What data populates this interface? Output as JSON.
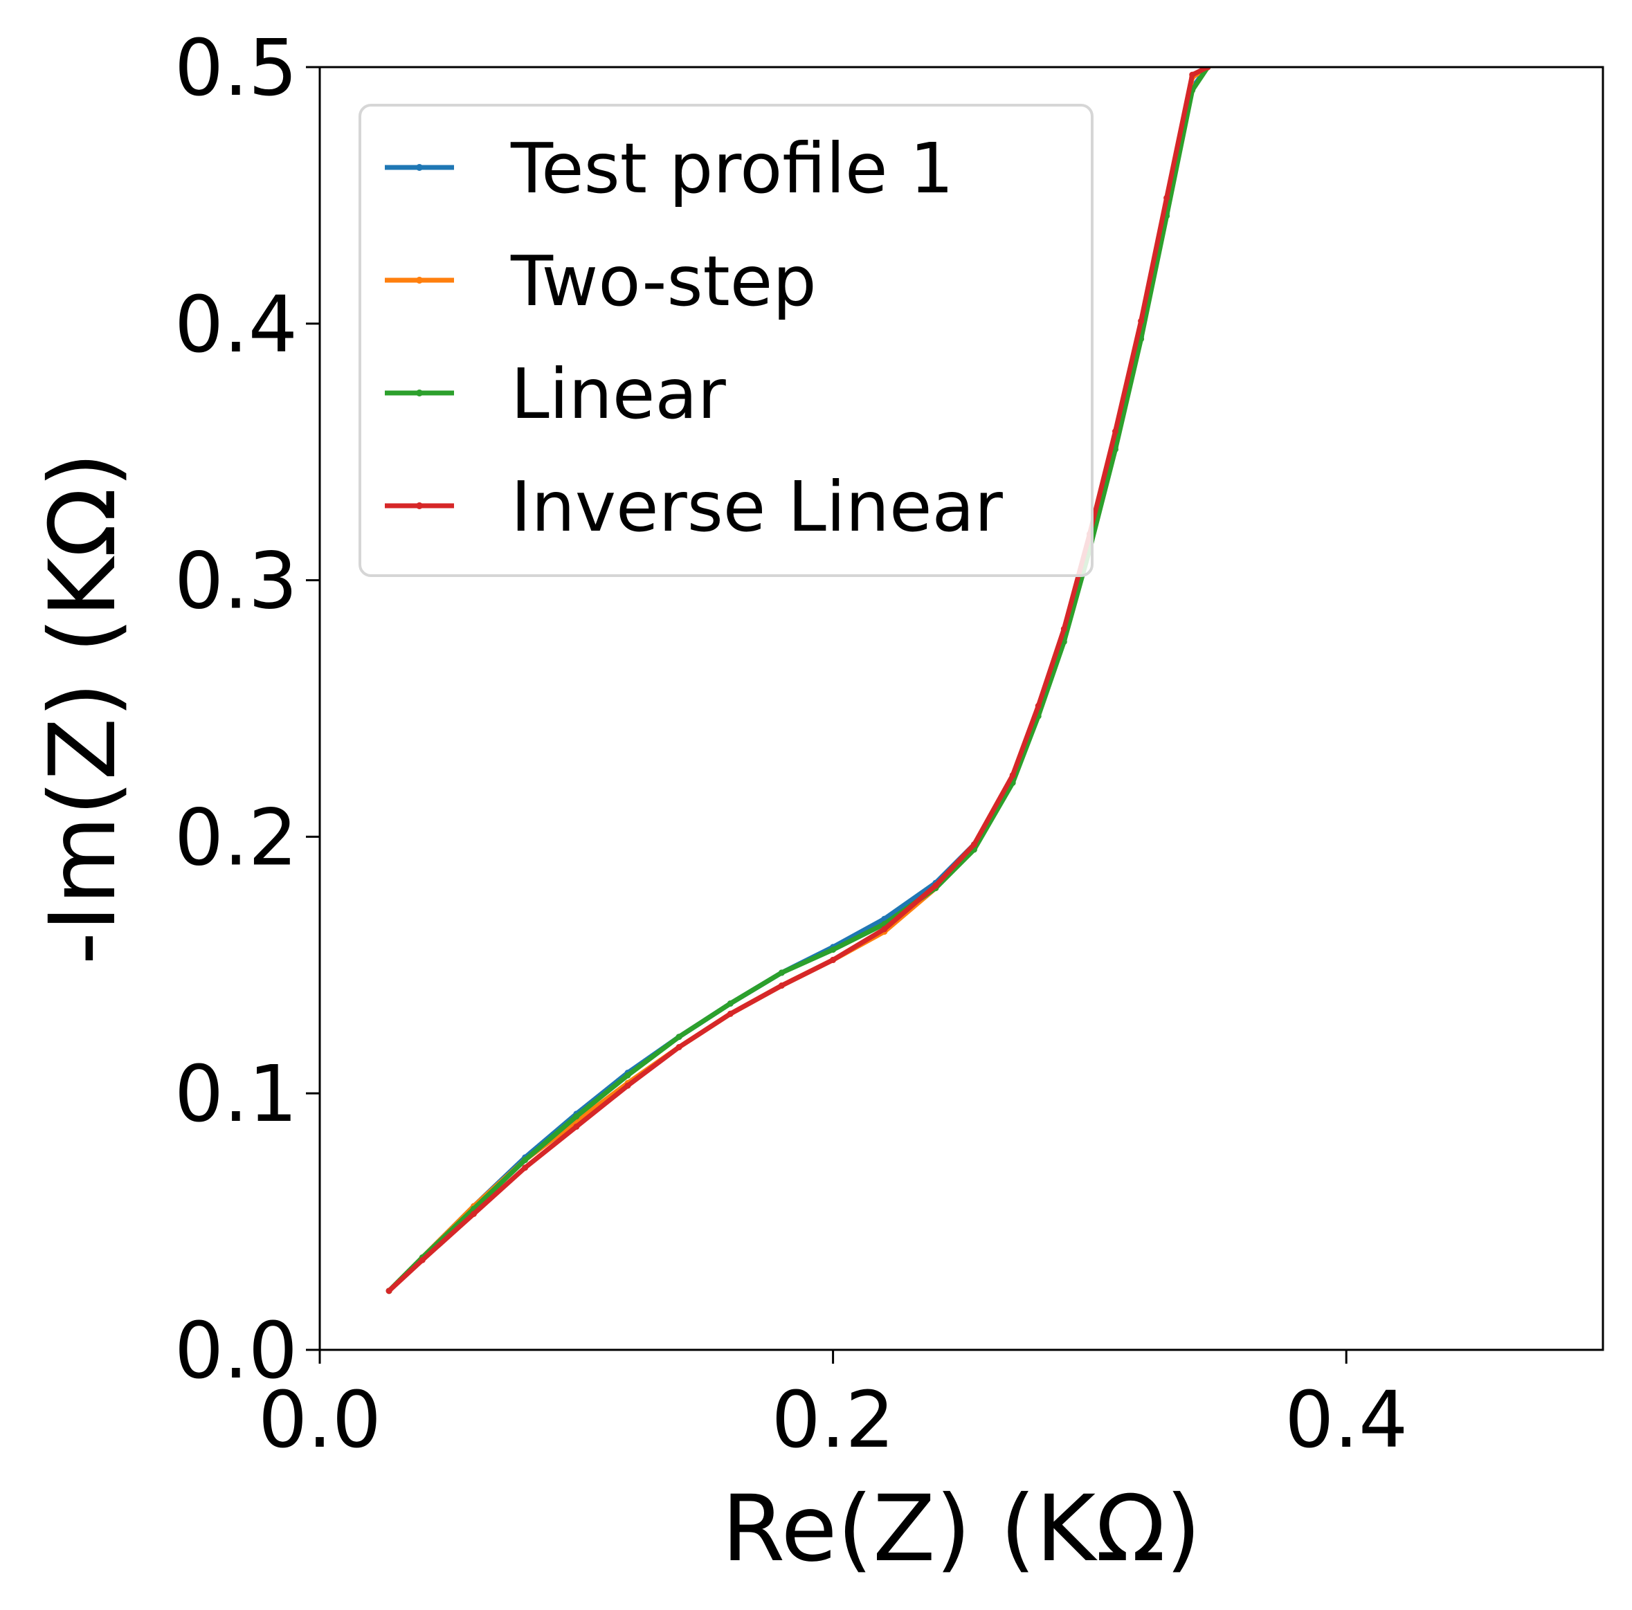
{
  "chart_data": {
    "type": "line",
    "xlabel": "Re(Z) (KΩ)",
    "ylabel": "-Im(Z) (KΩ)",
    "xlim": [
      0.0,
      0.5
    ],
    "ylim": [
      0.0,
      0.5
    ],
    "xticks": [
      0.0,
      0.2,
      0.4
    ],
    "xtick_labels": [
      "0.0",
      "0.2",
      "0.4"
    ],
    "yticks": [
      0.0,
      0.1,
      0.2,
      0.3,
      0.4,
      0.5
    ],
    "ytick_labels": [
      "0.0",
      "0.1",
      "0.2",
      "0.3",
      "0.4",
      "0.5"
    ],
    "grid": false,
    "legend_position": "top-left",
    "series": [
      {
        "name": "Test profile 1",
        "color": "#1f77b4",
        "x": [
          0.027,
          0.04,
          0.06,
          0.08,
          0.1,
          0.12,
          0.14,
          0.16,
          0.18,
          0.2,
          0.22,
          0.24,
          0.255,
          0.27,
          0.28,
          0.29,
          0.3,
          0.31,
          0.32,
          0.33,
          0.34,
          0.346
        ],
        "y": [
          0.023,
          0.036,
          0.056,
          0.075,
          0.092,
          0.108,
          0.122,
          0.135,
          0.147,
          0.157,
          0.168,
          0.182,
          0.197,
          0.222,
          0.248,
          0.277,
          0.313,
          0.352,
          0.395,
          0.443,
          0.492,
          0.5
        ]
      },
      {
        "name": "Two-step",
        "color": "#ff7f0e",
        "x": [
          0.027,
          0.04,
          0.06,
          0.08,
          0.1,
          0.12,
          0.14,
          0.16,
          0.18,
          0.2,
          0.22,
          0.24,
          0.255,
          0.27,
          0.28,
          0.29,
          0.3,
          0.31,
          0.32,
          0.33,
          0.34,
          0.346
        ],
        "y": [
          0.023,
          0.036,
          0.056,
          0.074,
          0.089,
          0.104,
          0.118,
          0.131,
          0.142,
          0.152,
          0.163,
          0.18,
          0.196,
          0.223,
          0.25,
          0.279,
          0.316,
          0.356,
          0.399,
          0.447,
          0.496,
          0.5
        ]
      },
      {
        "name": "Linear",
        "color": "#2ca02c",
        "x": [
          0.027,
          0.04,
          0.06,
          0.08,
          0.1,
          0.12,
          0.14,
          0.16,
          0.18,
          0.2,
          0.22,
          0.24,
          0.255,
          0.27,
          0.28,
          0.29,
          0.3,
          0.31,
          0.32,
          0.33,
          0.34,
          0.346
        ],
        "y": [
          0.023,
          0.036,
          0.055,
          0.074,
          0.091,
          0.107,
          0.122,
          0.135,
          0.147,
          0.156,
          0.166,
          0.18,
          0.195,
          0.221,
          0.247,
          0.276,
          0.312,
          0.351,
          0.394,
          0.442,
          0.491,
          0.5
        ]
      },
      {
        "name": "Inverse Linear",
        "color": "#d62728",
        "x": [
          0.027,
          0.04,
          0.06,
          0.08,
          0.1,
          0.12,
          0.14,
          0.16,
          0.18,
          0.2,
          0.22,
          0.24,
          0.255,
          0.27,
          0.28,
          0.29,
          0.3,
          0.31,
          0.32,
          0.33,
          0.34,
          0.346
        ],
        "y": [
          0.023,
          0.035,
          0.053,
          0.071,
          0.087,
          0.103,
          0.118,
          0.131,
          0.142,
          0.152,
          0.164,
          0.181,
          0.197,
          0.224,
          0.251,
          0.281,
          0.318,
          0.358,
          0.401,
          0.449,
          0.497,
          0.5
        ]
      }
    ]
  }
}
